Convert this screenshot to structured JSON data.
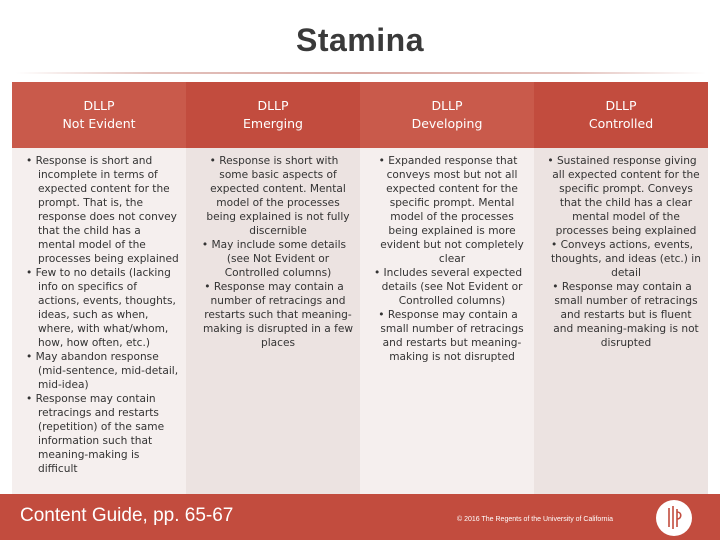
{
  "title": "Stamina",
  "columns": [
    {
      "head1": "DLLP",
      "head2": "Not Evident",
      "items": [
        "Response is short and incomplete in terms of expected content for the prompt. That is, the response does not convey that the child has a mental model of the processes being explained",
        "Few to no details (lacking info on specifics of actions, events, thoughts, ideas, such as when, where, with what/whom, how, how often, etc.)",
        "May abandon response (mid-sentence, mid-detail, mid-idea)",
        "Response may contain retracings and restarts (repetition) of the same information such that meaning-making is difficult"
      ]
    },
    {
      "head1": "DLLP",
      "head2": "Emerging",
      "items": [
        "Response is short with some basic aspects of expected content. Mental model of the processes being explained is not fully discernible",
        "May include some details (see Not Evident or Controlled columns)",
        "Response may contain a number of retracings and restarts such that meaning-making is disrupted in a few places"
      ]
    },
    {
      "head1": "DLLP",
      "head2": "Developing",
      "items": [
        "Expanded response that conveys most but not all expected content for the specific prompt. Mental model of the processes being explained is more evident but not completely clear",
        "Includes several expected details (see Not Evident or Controlled columns)",
        "Response may contain a small number of retracings and restarts but meaning-making is not disrupted"
      ]
    },
    {
      "head1": "DLLP",
      "head2": "Controlled",
      "items": [
        "Sustained response giving all expected content for the specific prompt. Conveys that the child has a clear mental model of the processes being explained",
        "Conveys actions, events, thoughts, and ideas (etc.) in detail",
        "Response may contain a small number of retracings and restarts but is fluent and meaning-making is not disrupted"
      ]
    }
  ],
  "footer": {
    "left": "Content Guide, pp. 65-67",
    "right": "© 2016 The Regents of the University of California"
  },
  "logo": {
    "icon": "dllp-logo-icon",
    "accent": "#c24c3e"
  },
  "colors": {
    "header": "#c24c3e",
    "footer": "#c24c3e",
    "body_light": "#f5efee",
    "body_dark": "#ece3e1"
  }
}
